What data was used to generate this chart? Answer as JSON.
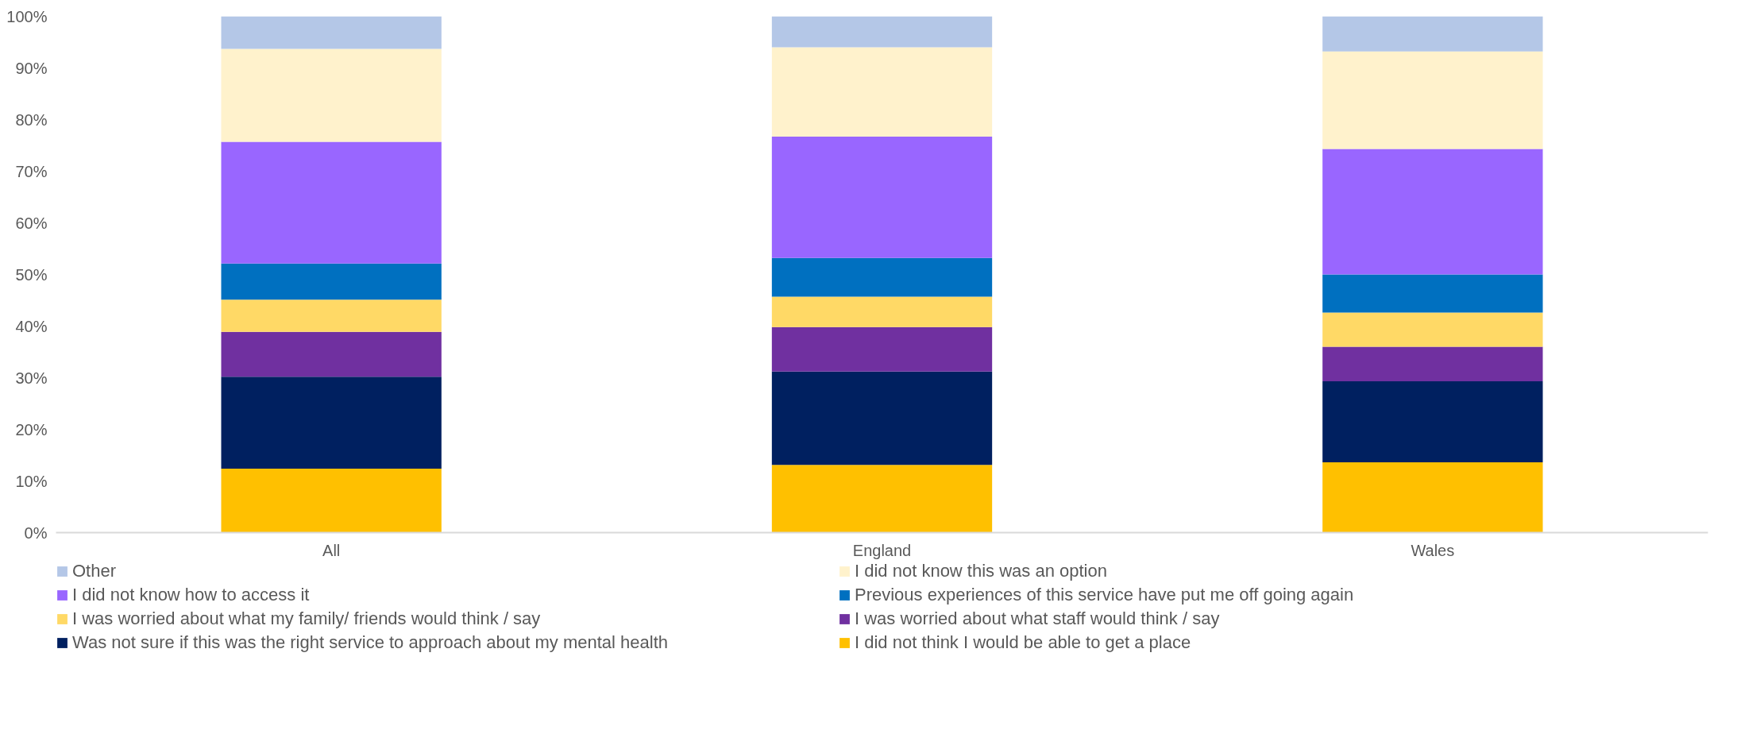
{
  "chart_data": {
    "type": "bar",
    "stacked": true,
    "categories": [
      "All",
      "England",
      "Wales"
    ],
    "ylim": [
      0,
      100
    ],
    "yticks": [
      {
        "value": 0,
        "label": "0%"
      },
      {
        "value": 10,
        "label": "10%"
      },
      {
        "value": 20,
        "label": "20%"
      },
      {
        "value": 30,
        "label": "30%"
      },
      {
        "value": 40,
        "label": "40%"
      },
      {
        "value": 50,
        "label": "50%"
      },
      {
        "value": 60,
        "label": "60%"
      },
      {
        "value": 70,
        "label": "70%"
      },
      {
        "value": 80,
        "label": "80%"
      },
      {
        "value": 90,
        "label": "90%"
      },
      {
        "value": 100,
        "label": "100%"
      }
    ],
    "grid": false,
    "legend": "bottom",
    "series": [
      {
        "name": "I did not think I would be able to get a place",
        "color": "#ffc000",
        "values": [
          12.4,
          13.1,
          13.6
        ]
      },
      {
        "name": "Was not sure if this was the right service to approach about my mental health",
        "color": "#002060",
        "values": [
          17.8,
          18.1,
          15.7
        ]
      },
      {
        "name": "I was worried about what staff would think / say",
        "color": "#7030a0",
        "values": [
          8.7,
          8.6,
          6.7
        ]
      },
      {
        "name": "I was worried about what my family/ friends would think / say",
        "color": "#ffd966",
        "values": [
          6.2,
          5.9,
          6.6
        ]
      },
      {
        "name": "Previous experiences of this service have put me off going again",
        "color": "#0070c0",
        "values": [
          7.0,
          7.5,
          7.4
        ]
      },
      {
        "name": "I did not know how to access it",
        "color": "#9966ff",
        "values": [
          23.6,
          23.5,
          24.3
        ]
      },
      {
        "name": "I did not know this was an option",
        "color": "#fff2cc",
        "values": [
          18.0,
          17.3,
          18.9
        ]
      },
      {
        "name": "Other",
        "color": "#b4c7e7",
        "values": [
          6.3,
          6.0,
          6.8
        ]
      }
    ]
  }
}
